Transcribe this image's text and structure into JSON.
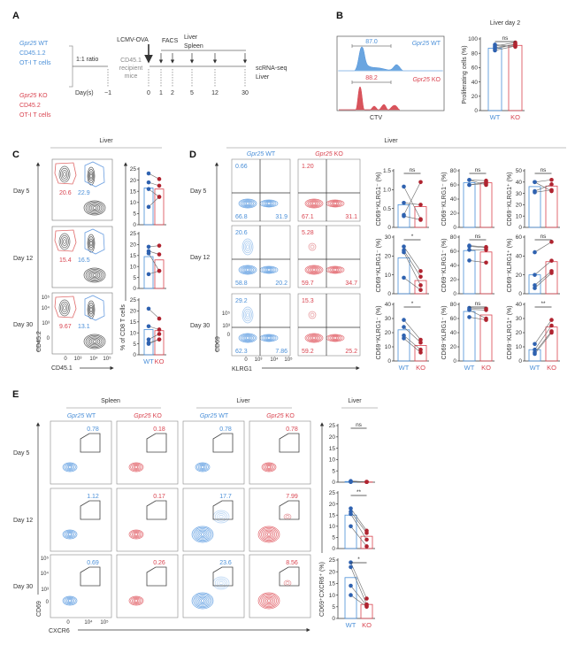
{
  "figure": {
    "panel_labels": [
      "A",
      "B",
      "C",
      "D",
      "E"
    ],
    "colors": {
      "wt": "#4a8fd8",
      "ko": "#d9434f",
      "wt_point": "#2f62b0",
      "ko_point": "#b02430",
      "wt_fill": "#6aa5e0",
      "ko_fill": "#d8545c",
      "axis": "#333333",
      "gray_text": "#8a8a8a"
    },
    "row_labels": [
      "Day 5",
      "Day 12",
      "Day 30"
    ],
    "wt_label": {
      "gene": "Gpr25",
      "genotype": " WT"
    },
    "ko_label": {
      "gene": "Gpr25",
      "genotype": " KO"
    },
    "panel_a": {
      "wt_group": [
        "CD45.1.2",
        "OT-I T cells"
      ],
      "ko_group": [
        "CD45.2",
        "OT-I T cells"
      ],
      "ratio": "1:1 ratio",
      "recipient": [
        "CD45.1",
        "recipient",
        "mice"
      ],
      "infection": "LCMV-OVA",
      "facs": "FACS",
      "tissues": [
        "Liver",
        "Spleen"
      ],
      "endpoint": [
        "scRNA-seq",
        "Liver"
      ],
      "days_label": "Day(s)",
      "days": [
        "−1",
        "0",
        "1",
        "2",
        "5",
        "12",
        "30"
      ]
    },
    "panel_b": {
      "wt_value": "87.0",
      "ko_value": "88.2",
      "xlabel": "CTV"
    },
    "panel_c": {
      "header": "Liver",
      "gates": [
        {
          "ko": "20.6",
          "wt": "22.9"
        },
        {
          "ko": "15.4",
          "wt": "16.5"
        },
        {
          "ko": "9.67",
          "wt": "13.1"
        }
      ],
      "xlabel": "CD45.1",
      "ylabel": "CD45.2",
      "x_ticks": [
        "0",
        "10³",
        "10⁴",
        "10⁵"
      ],
      "y_ticks": [
        "10⁵",
        "10⁴",
        "10³",
        "0"
      ]
    },
    "panel_d": {
      "header": "Liver",
      "quadrants": [
        {
          "wt": [
            "0.66",
            "66.8",
            "31.9"
          ],
          "ko": [
            "1.20",
            "67.1",
            "31.1"
          ]
        },
        {
          "wt": [
            "20.6",
            "58.8",
            "20.2"
          ],
          "ko": [
            "5.28",
            "59.7",
            "34.7"
          ]
        },
        {
          "wt": [
            "29.2",
            "62.3",
            "7.86"
          ],
          "ko": [
            "15.3",
            "59.2",
            "25.2"
          ]
        }
      ],
      "xlabel": "KLRG1",
      "ylabel": "CD69",
      "x_ticks": [
        "0",
        "10³",
        "10⁴",
        "10⁵"
      ],
      "y_ticks": [
        "10⁵",
        "10³",
        "0"
      ]
    },
    "panel_e": {
      "headers": [
        "Spleen",
        "Liver",
        "Liver"
      ],
      "gates": [
        [
          "0.78",
          "0.18",
          "0.78",
          "0.78"
        ],
        [
          "1.12",
          "0.17",
          "17.7",
          "7.99"
        ],
        [
          "0.69",
          "0.26",
          "23.6",
          "8.56"
        ]
      ],
      "xlabel": "CXCR6",
      "ylabel": "CD69",
      "x_ticks": [
        "0",
        "10⁴",
        "10⁵"
      ],
      "y_ticks": [
        "10⁵",
        "10⁴",
        "10³",
        "0"
      ]
    }
  },
  "chart_data": [
    {
      "panel": "B",
      "type": "bar",
      "title": "Liver day 2",
      "ylabel": "Proliferating cells (%)",
      "categories": [
        "WT",
        "KO"
      ],
      "ylim": [
        0,
        100
      ],
      "yticks": [
        "0",
        "20",
        "40",
        "60",
        "80",
        "100"
      ],
      "means": [
        87,
        91
      ],
      "wt_points": [
        88,
        86,
        84,
        90,
        92
      ],
      "ko_points": [
        92,
        93,
        90,
        95,
        89
      ],
      "significance": "ns"
    },
    {
      "panel": "C",
      "type": "bar",
      "ylabel": "",
      "ylim": [
        0,
        25
      ],
      "yticks": [
        "0",
        "5",
        "10",
        "15",
        "20",
        "25"
      ],
      "means": [
        16.5,
        16
      ],
      "wt_points": [
        23,
        19,
        16,
        8
      ],
      "ko_points": [
        20.5,
        17.5,
        12.5,
        12.5
      ]
    },
    {
      "panel": "C",
      "type": "bar",
      "ylabel": "",
      "ylim": [
        0,
        25
      ],
      "yticks": [
        "0",
        "5",
        "10",
        "15",
        "20",
        "25"
      ],
      "means": [
        14.5,
        13
      ],
      "wt_points": [
        19,
        17,
        16,
        6.5
      ],
      "ko_points": [
        19.5,
        15.5,
        8,
        8
      ]
    },
    {
      "panel": "C",
      "type": "bar",
      "ylabel": "% of CD8 T cells",
      "categories": [
        "WT",
        "KO"
      ],
      "ylim": [
        0,
        25
      ],
      "yticks": [
        "0",
        "5",
        "10",
        "15",
        "20",
        "25"
      ],
      "means": [
        11.5,
        11
      ],
      "wt_points": [
        21,
        13,
        7,
        5.5,
        5
      ],
      "ko_points": [
        16.5,
        11.5,
        9.5,
        7,
        7
      ]
    },
    {
      "panel": "D",
      "type": "bar",
      "ylabel": "CD69⁺KLRG1⁻ (%)",
      "ylim": [
        0,
        1.5
      ],
      "yticks": [
        "0",
        "0.5",
        "1.0",
        "1.5"
      ],
      "means": [
        0.6,
        0.55
      ],
      "wt_points": [
        1.08,
        0.65,
        0.33,
        0.3
      ],
      "ko_points": [
        0.22,
        0.6,
        1.2,
        0.2
      ],
      "significance": "ns"
    },
    {
      "panel": "D",
      "type": "bar",
      "ylabel": "CD69⁻KLRG1⁻ (%)",
      "ylim": [
        0,
        80
      ],
      "yticks": [
        "0",
        "20",
        "40",
        "60",
        "80"
      ],
      "means": [
        63,
        63
      ],
      "wt_points": [
        67,
        60,
        60,
        67
      ],
      "ko_points": [
        66,
        62,
        64,
        60
      ],
      "significance": "ns"
    },
    {
      "panel": "D",
      "type": "bar",
      "ylabel": "CD69⁻KLRG1⁺ (%)",
      "ylim": [
        0,
        50
      ],
      "yticks": [
        "0",
        "10",
        "20",
        "30",
        "40",
        "50"
      ],
      "means": [
        36,
        36.5
      ],
      "wt_points": [
        40,
        32,
        31,
        40
      ],
      "ko_points": [
        42,
        38,
        33,
        32
      ],
      "significance": "ns"
    },
    {
      "panel": "D",
      "type": "bar",
      "ylabel": "CD69⁺KLRG1⁻ (%)",
      "ylim": [
        0,
        30
      ],
      "yticks": [
        "0",
        "10",
        "20",
        "30"
      ],
      "means": [
        19,
        7
      ],
      "wt_points": [
        25,
        23,
        22,
        8.5
      ],
      "ko_points": [
        12,
        9,
        4.5,
        2
      ],
      "significance": "*"
    },
    {
      "panel": "D",
      "type": "bar",
      "ylabel": "CD69⁻KLRG1⁻ (%)",
      "ylim": [
        0,
        80
      ],
      "yticks": [
        "0",
        "20",
        "40",
        "60",
        "80"
      ],
      "means": [
        61,
        59
      ],
      "wt_points": [
        68,
        67,
        62,
        47
      ],
      "ko_points": [
        66,
        65,
        62,
        44
      ],
      "significance": "ns"
    },
    {
      "panel": "D",
      "type": "bar",
      "ylabel": "CD69⁻KLRG1⁺ (%)",
      "ylim": [
        0,
        60
      ],
      "yticks": [
        "0",
        "20",
        "40",
        "60"
      ],
      "means": [
        20,
        34
      ],
      "wt_points": [
        44,
        20,
        9,
        6
      ],
      "ko_points": [
        55,
        35,
        24,
        22
      ],
      "significance": "ns"
    },
    {
      "panel": "D",
      "type": "bar",
      "ylabel": "CD69⁺KLRG1⁻ (%)",
      "categories": [
        "WT",
        "KO"
      ],
      "ylim": [
        0,
        40
      ],
      "yticks": [
        "0",
        "10",
        "20",
        "30",
        "40"
      ],
      "means": [
        22,
        11
      ],
      "wt_points": [
        29,
        24,
        18,
        16
      ],
      "ko_points": [
        15,
        13,
        8,
        6
      ],
      "significance": "*"
    },
    {
      "panel": "D",
      "type": "bar",
      "ylabel": "CD69⁻KLRG1⁻ (%)",
      "categories": [
        "WT",
        "KO"
      ],
      "ylim": [
        0,
        80
      ],
      "yticks": [
        "0",
        "20",
        "40",
        "60",
        "80"
      ],
      "means": [
        70,
        65
      ],
      "wt_points": [
        75,
        73,
        72,
        62
      ],
      "ko_points": [
        74,
        72,
        60,
        58
      ],
      "significance": "ns"
    },
    {
      "panel": "D",
      "type": "bar",
      "ylabel": "CD69⁻KLRG1⁺ (%)",
      "categories": [
        "WT",
        "KO"
      ],
      "ylim": [
        0,
        40
      ],
      "yticks": [
        "0",
        "10",
        "20",
        "30",
        "40"
      ],
      "means": [
        8,
        24
      ],
      "wt_points": [
        12,
        8,
        6,
        5
      ],
      "ko_points": [
        29,
        25,
        21,
        20
      ],
      "significance": "**"
    },
    {
      "panel": "E",
      "type": "bar",
      "ylabel": "",
      "ylim": [
        0,
        25
      ],
      "yticks": [
        "0",
        "5",
        "10",
        "15",
        "20",
        "25"
      ],
      "means": [
        0.3,
        0.1
      ],
      "wt_points": [
        0.5,
        0.3,
        0.2,
        0.1
      ],
      "ko_points": [
        0.2,
        0.1,
        0.1,
        0.1
      ],
      "significance": "ns"
    },
    {
      "panel": "E",
      "type": "bar",
      "ylabel": "",
      "ylim": [
        0,
        25
      ],
      "yticks": [
        "0",
        "5",
        "10",
        "15",
        "20",
        "25"
      ],
      "means": [
        15,
        5.5
      ],
      "wt_points": [
        18,
        16.5,
        15.5,
        10
      ],
      "ko_points": [
        8,
        7,
        4,
        1
      ],
      "significance": "**"
    },
    {
      "panel": "E",
      "type": "bar",
      "ylabel": "CD69⁺CXCR6⁺ (%)",
      "categories": [
        "WT",
        "KO"
      ],
      "ylim": [
        0,
        25
      ],
      "yticks": [
        "0",
        "5",
        "10",
        "15",
        "20",
        "25"
      ],
      "means": [
        17.5,
        6
      ],
      "wt_points": [
        24,
        22,
        14,
        10
      ],
      "ko_points": [
        8.5,
        6,
        5.5,
        5
      ],
      "significance": "*"
    }
  ]
}
